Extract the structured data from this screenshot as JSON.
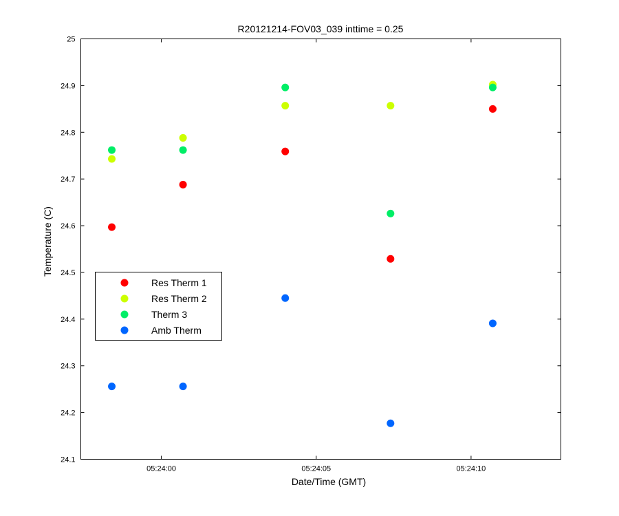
{
  "chart_data": {
    "type": "scatter",
    "title": "R20121214-FOV03_039 inttime = 0.25",
    "xlabel": "Date/Time (GMT)",
    "ylabel": "Temperature (C)",
    "x_axis": {
      "range": [
        "05:23:57.4",
        "05:24:12.9"
      ],
      "ticks": [
        "05:24:00",
        "05:24:05",
        "05:24:10"
      ]
    },
    "y_axis": {
      "range": [
        24.1,
        25
      ],
      "ticks": [
        "24.1",
        "24.2",
        "24.3",
        "24.4",
        "24.5",
        "24.6",
        "24.7",
        "24.8",
        "24.9",
        "25"
      ]
    },
    "grid": false,
    "legend": {
      "placement": "left-center",
      "entries": [
        "Res Therm 1",
        "Res Therm 2",
        "Therm 3",
        "Amb Therm"
      ]
    },
    "x": [
      "05:23:58.4",
      "05:24:00.7",
      "05:24:04.0",
      "05:24:07.4",
      "05:24:10.7"
    ],
    "series": [
      {
        "name": "Res Therm 1",
        "color": "#ff0000",
        "values": [
          24.597,
          24.688,
          24.759,
          24.529,
          24.85
        ]
      },
      {
        "name": "Res Therm 2",
        "color": "#ccff00",
        "values": [
          24.743,
          24.788,
          24.857,
          24.857,
          24.902
        ]
      },
      {
        "name": "Therm 3",
        "color": "#00ee66",
        "values": [
          24.762,
          24.762,
          24.896,
          24.626,
          24.896
        ]
      },
      {
        "name": "Amb Therm",
        "color": "#0066ff",
        "values": [
          24.256,
          24.256,
          24.445,
          24.177,
          24.391
        ]
      }
    ]
  }
}
